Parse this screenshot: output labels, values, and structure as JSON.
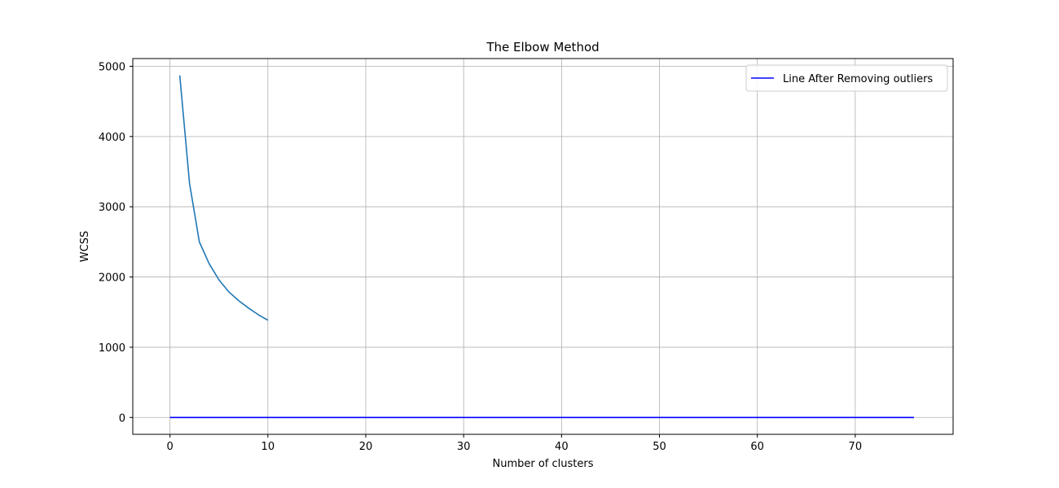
{
  "chart_data": {
    "type": "line",
    "title": "The Elbow Method",
    "xlabel": "Number of clusters",
    "ylabel": "WCSS",
    "xlim": [
      -3.8,
      80
    ],
    "ylim": [
      -240,
      5110
    ],
    "xticks": [
      0,
      10,
      20,
      30,
      40,
      50,
      60,
      70
    ],
    "yticks": [
      0,
      1000,
      2000,
      3000,
      4000,
      5000
    ],
    "grid": true,
    "legend": {
      "placement": "top-right",
      "entries": [
        {
          "label": "Line After Removing outliers",
          "color": "#0000ff"
        }
      ]
    },
    "series": [
      {
        "color": "#1f77b4",
        "x": [
          1,
          2,
          3,
          4,
          5,
          6,
          7,
          8,
          9,
          10
        ],
        "y": [
          4870,
          3330,
          2500,
          2190,
          1960,
          1790,
          1665,
          1560,
          1465,
          1385
        ]
      },
      {
        "name": "Line After Removing outliers",
        "color": "#0000ff",
        "x": [
          0,
          76
        ],
        "y": [
          0,
          0
        ]
      }
    ]
  }
}
